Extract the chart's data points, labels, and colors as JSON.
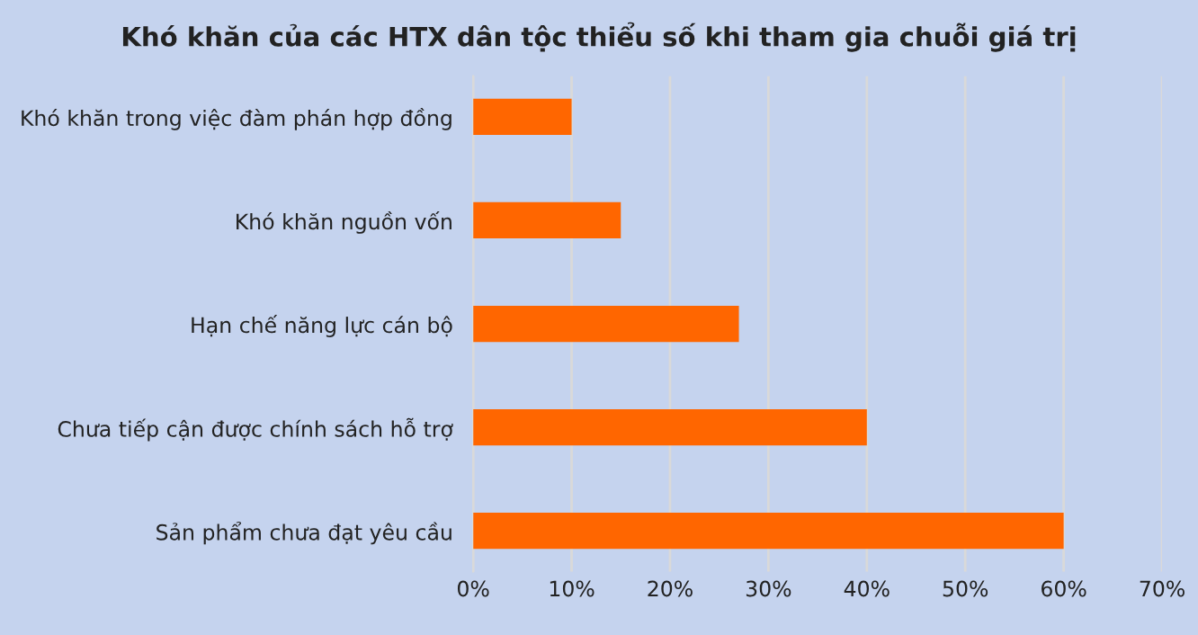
{
  "chart_data": {
    "type": "bar",
    "orientation": "horizontal",
    "title": "Khó khăn của các HTX dân tộc thiểu số khi tham gia chuỗi giá trị",
    "categories": [
      "Khó khăn trong việc đàm phán hợp đồng",
      "Khó khăn nguồn vốn",
      "Hạn chế năng lực cán bộ",
      "Chưa tiếp cận được chính sách hỗ trợ",
      "Sản phẩm chưa đạt yêu cầu"
    ],
    "values": [
      10,
      15,
      27,
      40,
      60
    ],
    "color": "#ff6600",
    "xlim": [
      0,
      70
    ],
    "xticks": [
      {
        "value": 0,
        "label": "0%"
      },
      {
        "value": 10,
        "label": "10%"
      },
      {
        "value": 20,
        "label": "20%"
      },
      {
        "value": 30,
        "label": "30%"
      },
      {
        "value": 40,
        "label": "40%"
      },
      {
        "value": 50,
        "label": "50%"
      },
      {
        "value": 60,
        "label": "60%"
      },
      {
        "value": 70,
        "label": "70%"
      }
    ],
    "grid": "x",
    "legend": false
  }
}
